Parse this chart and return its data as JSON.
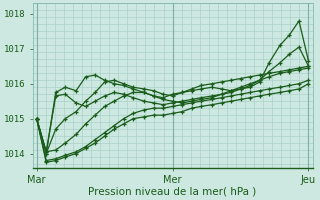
{
  "title": "",
  "xlabel": "Pression niveau de la mer( hPa )",
  "bg_color": "#cce8e0",
  "line_color": "#1a5c1a",
  "grid_color": "#aad0c8",
  "vline_color": "#7ab0a8",
  "ylim": [
    1013.6,
    1018.3
  ],
  "yticks": [
    1014,
    1015,
    1016,
    1017,
    1018
  ],
  "xtick_labels": [
    "Mar",
    "Mer",
    "Jeu"
  ],
  "xtick_pos": [
    0.0,
    1.0,
    2.0
  ],
  "series": [
    {
      "x": [
        0.0,
        0.07,
        0.14,
        0.21,
        0.29,
        0.36,
        0.43,
        0.5,
        0.57,
        0.64,
        0.71,
        0.79,
        0.86,
        0.93,
        1.0,
        1.07,
        1.14,
        1.21,
        1.29,
        1.36,
        1.43,
        1.5,
        1.57,
        1.64,
        1.71,
        1.79,
        1.86,
        1.93,
        2.0
      ],
      "y": [
        1015.0,
        1014.0,
        1014.7,
        1015.0,
        1015.2,
        1015.5,
        1015.75,
        1016.05,
        1016.1,
        1016.0,
        1015.9,
        1015.85,
        1015.8,
        1015.7,
        1015.65,
        1015.75,
        1015.85,
        1015.95,
        1016.0,
        1016.05,
        1016.1,
        1016.15,
        1016.2,
        1016.25,
        1016.3,
        1016.35,
        1016.4,
        1016.45,
        1016.5
      ]
    },
    {
      "x": [
        0.0,
        0.07,
        0.14,
        0.21,
        0.29,
        0.36,
        0.43,
        0.5,
        0.57,
        0.64,
        0.71,
        0.79,
        0.86,
        0.93,
        1.0,
        1.07,
        1.14,
        1.21,
        1.29,
        1.36,
        1.43,
        1.5,
        1.57,
        1.64,
        1.71,
        1.79,
        1.86,
        1.93,
        2.0
      ],
      "y": [
        1015.0,
        1014.05,
        1014.1,
        1014.3,
        1014.55,
        1014.85,
        1015.1,
        1015.35,
        1015.5,
        1015.65,
        1015.75,
        1015.75,
        1015.65,
        1015.55,
        1015.5,
        1015.45,
        1015.5,
        1015.55,
        1015.6,
        1015.7,
        1015.8,
        1015.9,
        1016.0,
        1016.1,
        1016.2,
        1016.3,
        1016.35,
        1016.4,
        1016.45
      ]
    },
    {
      "x": [
        0.0,
        0.07,
        0.14,
        0.21,
        0.29,
        0.36,
        0.43,
        0.5,
        0.57,
        0.64,
        0.71,
        0.79,
        0.86,
        0.93,
        1.0,
        1.07,
        1.14,
        1.21,
        1.29,
        1.36,
        1.43,
        1.5,
        1.57,
        1.64,
        1.71,
        1.79,
        1.86,
        1.93,
        2.0
      ],
      "y": [
        1015.0,
        1013.8,
        1013.85,
        1013.95,
        1014.05,
        1014.2,
        1014.4,
        1014.6,
        1014.8,
        1015.0,
        1015.15,
        1015.25,
        1015.3,
        1015.3,
        1015.35,
        1015.4,
        1015.45,
        1015.5,
        1015.55,
        1015.6,
        1015.65,
        1015.7,
        1015.75,
        1015.8,
        1015.85,
        1015.9,
        1015.95,
        1016.0,
        1016.1
      ]
    },
    {
      "x": [
        0.0,
        0.07,
        0.14,
        0.21,
        0.29,
        0.36,
        0.43,
        0.5,
        0.57,
        0.64,
        0.71,
        0.79,
        0.86,
        0.93,
        1.0,
        1.07,
        1.14,
        1.21,
        1.29,
        1.36,
        1.43,
        1.5,
        1.57,
        1.64,
        1.71,
        1.79,
        1.86,
        1.93,
        2.0
      ],
      "y": [
        1015.0,
        1013.75,
        1013.8,
        1013.9,
        1014.0,
        1014.15,
        1014.3,
        1014.5,
        1014.7,
        1014.85,
        1015.0,
        1015.05,
        1015.1,
        1015.1,
        1015.15,
        1015.2,
        1015.3,
        1015.35,
        1015.4,
        1015.45,
        1015.5,
        1015.55,
        1015.6,
        1015.65,
        1015.7,
        1015.75,
        1015.8,
        1015.85,
        1016.0
      ]
    },
    {
      "x": [
        0.0,
        0.07,
        0.14,
        0.21,
        0.29,
        0.36,
        0.43,
        0.5,
        0.57,
        0.64,
        0.71,
        0.79,
        0.86,
        0.93,
        1.0,
        1.07,
        1.14,
        1.21,
        1.29,
        1.36,
        1.43,
        1.5,
        1.57,
        1.64,
        1.71,
        1.79,
        1.86,
        1.93,
        2.0
      ],
      "y": [
        1015.0,
        1014.0,
        1015.75,
        1015.9,
        1015.8,
        1016.2,
        1016.25,
        1016.1,
        1016.0,
        1015.95,
        1015.85,
        1015.75,
        1015.65,
        1015.6,
        1015.7,
        1015.75,
        1015.8,
        1015.85,
        1015.9,
        1015.85,
        1015.8,
        1015.85,
        1015.9,
        1016.05,
        1016.6,
        1017.1,
        1017.4,
        1017.8,
        1016.65
      ]
    },
    {
      "x": [
        0.0,
        0.07,
        0.14,
        0.21,
        0.29,
        0.36,
        0.43,
        0.5,
        0.57,
        0.64,
        0.71,
        0.79,
        0.86,
        0.93,
        1.0,
        1.07,
        1.14,
        1.21,
        1.29,
        1.36,
        1.43,
        1.5,
        1.57,
        1.64,
        1.71,
        1.79,
        1.86,
        1.93,
        2.0
      ],
      "y": [
        1015.0,
        1014.05,
        1015.65,
        1015.7,
        1015.45,
        1015.35,
        1015.5,
        1015.65,
        1015.75,
        1015.7,
        1015.6,
        1015.5,
        1015.45,
        1015.4,
        1015.45,
        1015.5,
        1015.55,
        1015.6,
        1015.65,
        1015.7,
        1015.75,
        1015.85,
        1015.95,
        1016.1,
        1016.35,
        1016.6,
        1016.85,
        1017.05,
        1016.5
      ]
    }
  ]
}
